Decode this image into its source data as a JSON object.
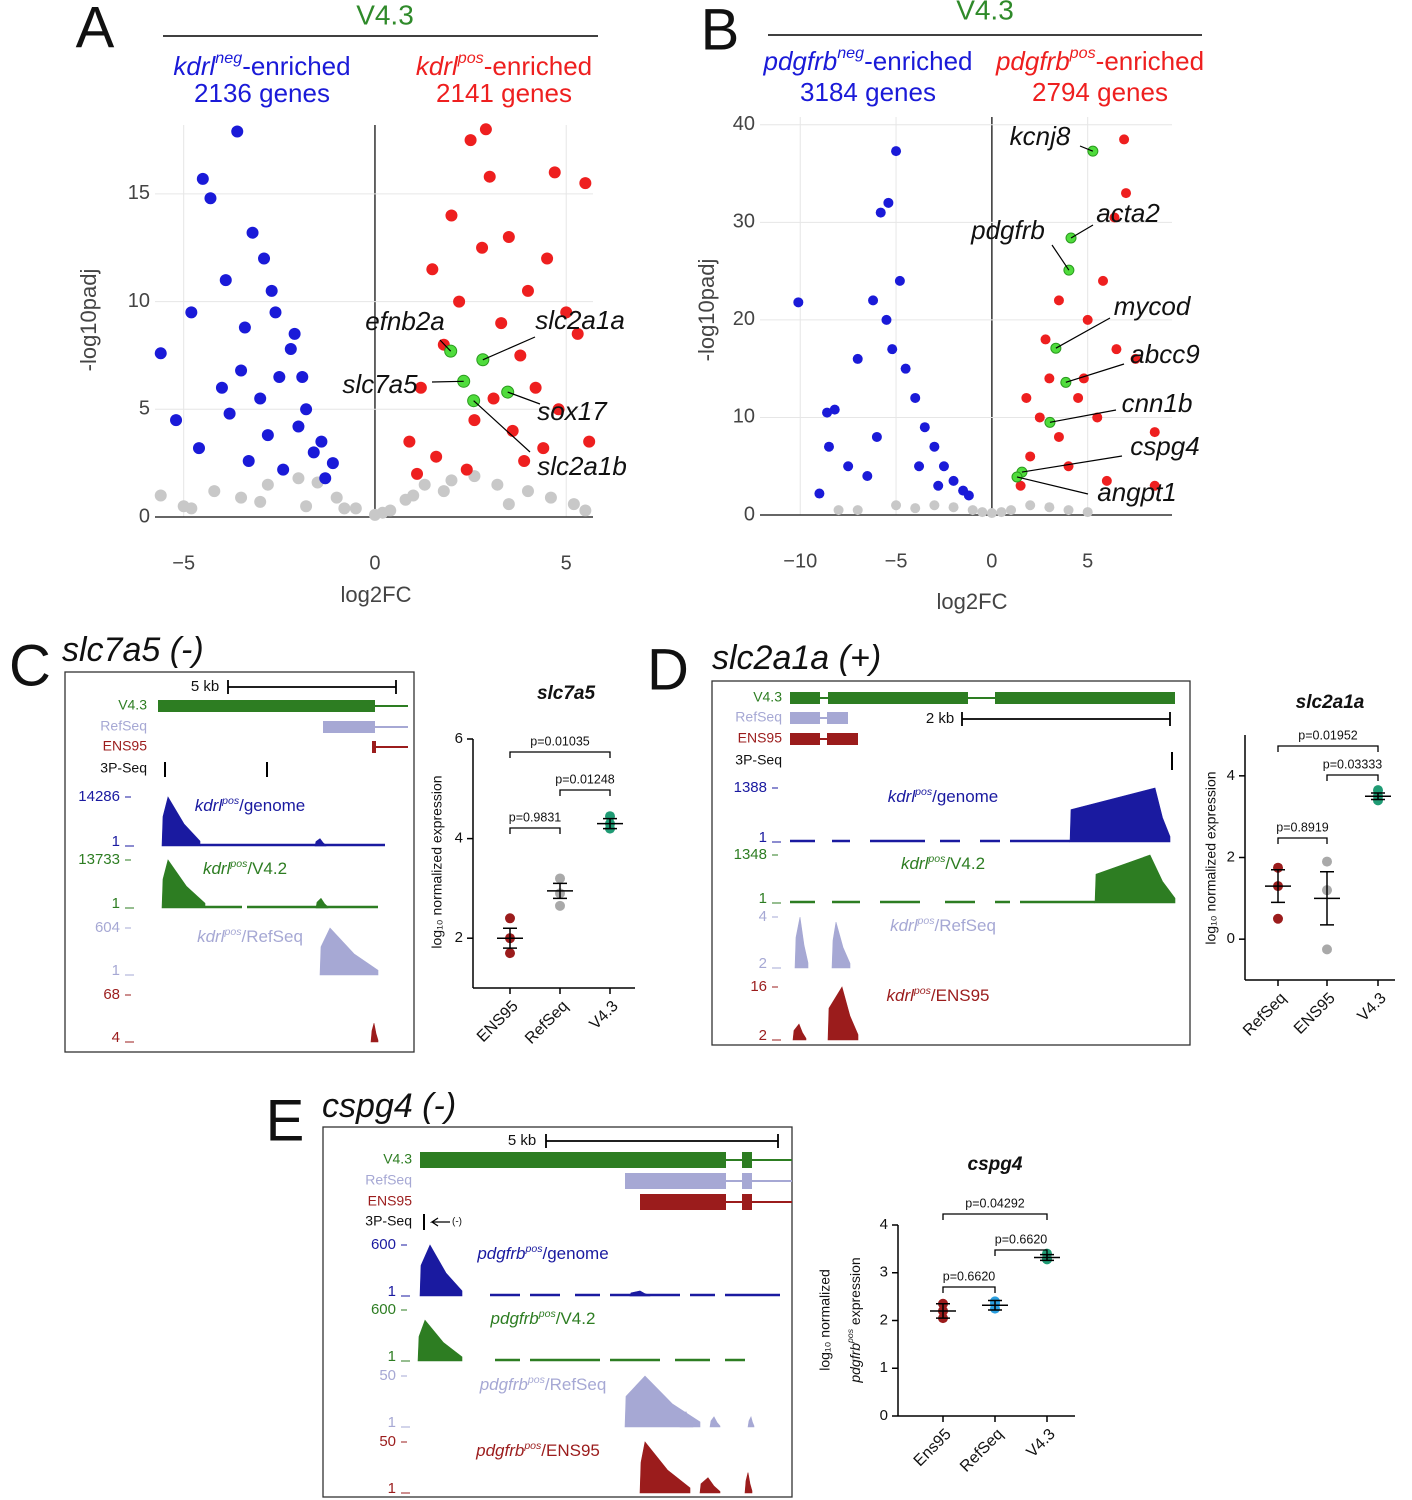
{
  "chart_data": [
    {
      "type": "scatter",
      "panel": "A",
      "title": "V4.3",
      "groups": [
        {
          "label": {
            "gene": "kdrl",
            "sup": "neg",
            "rest": "-enriched"
          },
          "count": "2136 genes",
          "color": "#1a1ad8"
        },
        {
          "label": {
            "gene": "kdrl",
            "sup": "pos",
            "rest": "-enriched"
          },
          "count": "2141 genes",
          "color": "#ee1f1f"
        }
      ],
      "xlabel": "log2FC",
      "ylabel": "-log10padj",
      "xlim": [
        -5.75,
        5.7
      ],
      "ylim": [
        0,
        18.2
      ],
      "xticks": [
        {
          "value": -5,
          "label": "−5"
        },
        0,
        5
      ],
      "yticks": [
        0,
        5,
        10,
        15
      ],
      "grid": true,
      "series": [
        {
          "color": "#c8c8c8",
          "x": [
            -5.6,
            -5.0,
            -4.2,
            -3.5,
            -2.8,
            -2.0,
            -1.5,
            -1.0,
            -0.5,
            0,
            0.4,
            0.8,
            1.3,
            2.0,
            2.6,
            3.2,
            4.0,
            4.6,
            5.2,
            -3.0,
            -1.8,
            -0.8,
            0.2,
            1.0,
            1.8,
            3.5,
            -4.8,
            5.5
          ],
          "values": [
            1.0,
            0.5,
            1.2,
            0.9,
            1.5,
            1.8,
            1.6,
            0.9,
            0.4,
            0.1,
            0.3,
            0.8,
            1.5,
            1.7,
            1.9,
            1.5,
            1.2,
            0.9,
            0.6,
            0.7,
            0.5,
            0.4,
            0.2,
            1.0,
            1.2,
            0.6,
            0.4,
            0.3
          ]
        },
        {
          "color": "#1a1ad8",
          "x": [
            -3.6,
            -4.5,
            -4.3,
            -3.2,
            -2.9,
            -5.6,
            -5.2,
            -4.8,
            -3.9,
            -3.4,
            -2.6,
            -2.2,
            -1.8,
            -1.4,
            -1.1,
            -2.5,
            -3.0,
            -3.5,
            -4.0,
            -2.0,
            -1.6,
            -2.8,
            -3.3,
            -4.6,
            -1.3,
            -2.4,
            -3.8,
            -2.1,
            -1.9,
            -2.7
          ],
          "values": [
            17.9,
            15.7,
            14.8,
            13.2,
            12.0,
            7.6,
            4.5,
            9.5,
            11.0,
            8.8,
            9.5,
            7.8,
            5.0,
            3.5,
            2.5,
            6.5,
            5.5,
            6.8,
            6.0,
            4.2,
            3.0,
            3.8,
            2.6,
            3.2,
            1.8,
            2.2,
            4.8,
            8.5,
            6.5,
            10.5
          ]
        },
        {
          "color": "#ee1f1f",
          "x": [
            1.5,
            2.0,
            2.5,
            3.0,
            3.5,
            4.0,
            4.5,
            5.0,
            5.5,
            1.2,
            0.9,
            1.8,
            2.2,
            2.8,
            3.3,
            3.8,
            4.2,
            4.8,
            5.3,
            2.6,
            3.1,
            3.6,
            4.4,
            1.6,
            2.4,
            3.9,
            5.6,
            1.1,
            2.9,
            4.7
          ],
          "values": [
            11.5,
            14.0,
            17.5,
            15.8,
            13.0,
            10.5,
            12.0,
            9.5,
            15.5,
            6.0,
            3.5,
            8.0,
            10.0,
            12.5,
            9.0,
            7.5,
            6.0,
            5.0,
            8.5,
            4.5,
            5.5,
            4.0,
            3.2,
            2.8,
            2.2,
            2.6,
            3.5,
            2.0,
            18.0,
            16.0
          ]
        },
        {
          "color": "#4fdc3c",
          "labels": [
            "efnb2a",
            "slc2a1a",
            "slc7a5",
            "sox17",
            "slc2a1b"
          ],
          "x": [
            1.98,
            2.82,
            2.32,
            3.47,
            2.58
          ],
          "values": [
            7.7,
            7.3,
            6.3,
            5.8,
            5.4
          ]
        }
      ]
    },
    {
      "type": "scatter",
      "panel": "B",
      "title": "V4.3",
      "groups": [
        {
          "label": {
            "gene": "pdgfrb",
            "sup": "neg",
            "rest": "-enriched"
          },
          "count": "3184 genes",
          "color": "#1a1ad8"
        },
        {
          "label": {
            "gene": "pdgfrb",
            "sup": "pos",
            "rest": "-enriched"
          },
          "count": "2794 genes",
          "color": "#ee1f1f"
        }
      ],
      "xlabel": "log2FC",
      "ylabel": "-log10padj",
      "xlim": [
        -12.1,
        9.4
      ],
      "ylim": [
        0,
        40.8
      ],
      "xticks": [
        {
          "value": -10,
          "label": "−10"
        },
        {
          "value": -5,
          "label": "−5"
        },
        0,
        5
      ],
      "yticks": [
        0,
        10,
        20,
        30,
        40
      ],
      "grid": true,
      "series": [
        {
          "color": "#c8c8c8",
          "x": [
            -8,
            -7,
            -5,
            -3,
            -2,
            -1,
            0,
            1,
            2,
            3,
            4,
            5,
            -4,
            -0.5,
            0.5
          ],
          "values": [
            0.5,
            0.5,
            1,
            1,
            0.8,
            0.5,
            0.2,
            0.5,
            1,
            0.8,
            0.5,
            0.3,
            0.7,
            0.3,
            0.3
          ]
        },
        {
          "color": "#1a1ad8",
          "x": [
            -10.1,
            -5,
            -5.4,
            -5.8,
            -6.2,
            -7,
            -8.6,
            -8.2,
            -9,
            -8.5,
            -7.5,
            -6.5,
            -5.5,
            -4.5,
            -4,
            -3.5,
            -3,
            -2.5,
            -2,
            -1.5,
            -1.2,
            -4.8,
            -5.2,
            -3.8,
            -6,
            -2.8
          ],
          "values": [
            21.8,
            37.3,
            32,
            31,
            22,
            16,
            10.5,
            10.8,
            2.2,
            7,
            5,
            4,
            20,
            15,
            12,
            9,
            7,
            5,
            3.5,
            2.5,
            2,
            24,
            17,
            5,
            8,
            3
          ]
        },
        {
          "color": "#ee1f1f",
          "x": [
            6.9,
            7.0,
            6.4,
            5.8,
            5,
            6.5,
            7.5,
            4.5,
            8.5,
            3.5,
            3,
            2.5,
            2,
            1.5,
            4,
            6,
            8.5,
            3.5,
            5.5,
            2.8,
            1.8,
            4.8
          ],
          "values": [
            38.5,
            33,
            30.5,
            24,
            20,
            17,
            16,
            12,
            8.5,
            22,
            14,
            10,
            6,
            3,
            5,
            3.5,
            3,
            8,
            10,
            18,
            12,
            14
          ]
        },
        {
          "color": "#4fdc3c",
          "labels": [
            "kcnj8",
            "acta2",
            "pdgfrb",
            "mycod",
            "abcc9",
            "cnn1b",
            "cspg4",
            "angpt1"
          ],
          "x": [
            5.27,
            4.13,
            4.02,
            3.34,
            3.86,
            3.03,
            1.57,
            1.31
          ],
          "values": [
            37.3,
            28.4,
            25.1,
            17.1,
            13.6,
            9.5,
            4.4,
            3.9
          ]
        }
      ]
    },
    {
      "type": "dot",
      "title": "slc7a5",
      "ylabel": [
        "log₁₀ normalized expression"
      ],
      "categories": [
        "ENS95",
        "RefSeq",
        "V4.3"
      ],
      "colors": [
        "#9b1c1c",
        "#a9a9a9",
        "#1f9b74"
      ],
      "points": [
        [
          2.4,
          2.0,
          1.7
        ],
        [
          3.2,
          2.9,
          2.65
        ],
        [
          4.45,
          4.3,
          4.2
        ]
      ],
      "means": [
        2.0,
        2.95,
        4.3
      ],
      "errors": [
        0.2,
        0.15,
        0.1
      ],
      "ylim": [
        1,
        6
      ],
      "yticks": [
        2,
        4,
        6
      ],
      "comparisons": [
        {
          "pair": [
            0,
            1
          ],
          "label": "p=0.9831"
        },
        {
          "pair": [
            1,
            2
          ],
          "label": "p=0.01248"
        },
        {
          "pair": [
            0,
            2
          ],
          "label": "p=0.01035"
        }
      ]
    },
    {
      "type": "dot",
      "title": "slc2a1a",
      "ylabel": [
        "log₁₀ normalized expression"
      ],
      "categories": [
        "RefSeq",
        "ENS95",
        "V4.3"
      ],
      "colors": [
        "#9b1c1c",
        "#a9a9a9",
        "#1f9b74"
      ],
      "points": [
        [
          1.75,
          1.3,
          0.5
        ],
        [
          1.9,
          1.2,
          -0.25
        ],
        [
          3.65,
          3.5,
          3.4
        ]
      ],
      "means": [
        1.3,
        1.0,
        3.5
      ],
      "errors": [
        0.4,
        0.65,
        0.08
      ],
      "ylim": [
        -1,
        5
      ],
      "yticks": [
        0,
        2,
        4
      ],
      "comparisons": [
        {
          "pair": [
            0,
            1
          ],
          "label": "p=0.8919"
        },
        {
          "pair": [
            1,
            2
          ],
          "label": "p=0.03333"
        },
        {
          "pair": [
            0,
            2
          ],
          "label": "p=0.01952"
        }
      ]
    },
    {
      "type": "dot",
      "title": "cspg4",
      "ylabel": [
        "log₁₀ normalized",
        {
          "gene": "pdgfrb",
          "sup": "pos",
          "rest": " expression"
        }
      ],
      "categories": [
        "Ens95",
        "RefSeq",
        "V4.3"
      ],
      "colors": [
        "#9b1c1c",
        "#2a9fe0",
        "#1f9b74"
      ],
      "points": [
        [
          2.35,
          2.2,
          2.05
        ],
        [
          2.4,
          2.35,
          2.25
        ],
        [
          3.4,
          3.3,
          3.28
        ]
      ],
      "means": [
        2.2,
        2.32,
        3.32
      ],
      "errors": [
        0.15,
        0.1,
        0.06
      ],
      "ylim": [
        0,
        4
      ],
      "yticks": [
        0,
        1,
        2,
        3,
        4
      ],
      "comparisons": [
        {
          "pair": [
            0,
            1
          ],
          "label": "p=0.6620"
        },
        {
          "pair": [
            1,
            2
          ],
          "label": "p=0.6620"
        },
        {
          "pair": [
            0,
            2
          ],
          "label": "p=0.04292"
        }
      ]
    }
  ],
  "browsers": [
    {
      "panel": "C",
      "gene": "slc7a5 (-)",
      "scale": "5 kb",
      "annotations": [
        "V4.3",
        "RefSeq",
        "ENS95",
        "3P-Seq"
      ],
      "tracks": [
        {
          "label": {
            "gene": "kdrl",
            "sup": "pos",
            "rest": "/genome"
          },
          "max": 14286,
          "min": 1,
          "color": "#1a1aa0"
        },
        {
          "label": {
            "gene": "kdrl",
            "sup": "pos",
            "rest": "/V4.2"
          },
          "max": 13733,
          "min": 1,
          "color": "#2d7d22"
        },
        {
          "label": {
            "gene": "kdrl",
            "sup": "pos",
            "rest": "/RefSeq"
          },
          "max": 604,
          "min": 1,
          "color": "#a6a8d4"
        },
        {
          "max": 68,
          "min": 4,
          "color": "#9b1c1c"
        }
      ]
    },
    {
      "panel": "D",
      "gene": "slc2a1a (+)",
      "scale": "2 kb",
      "annotations": [
        "V4.3",
        "RefSeq",
        "ENS95",
        "3P-Seq"
      ],
      "tracks": [
        {
          "label": {
            "gene": "kdrl",
            "sup": "pos",
            "rest": "/genome"
          },
          "max": 1388,
          "min": 1,
          "color": "#1a1aa0"
        },
        {
          "label": {
            "gene": "kdrl",
            "sup": "pos",
            "rest": "/V4.2"
          },
          "max": 1348,
          "min": 1,
          "color": "#2d7d22"
        },
        {
          "label": {
            "gene": "kdrl",
            "sup": "pos",
            "rest": "/RefSeq"
          },
          "max": 4,
          "min": 2,
          "color": "#a6a8d4"
        },
        {
          "label": {
            "gene": "kdrl",
            "sup": "pos",
            "rest": "/ENS95"
          },
          "max": 16,
          "min": 2,
          "color": "#9b1c1c"
        }
      ]
    },
    {
      "panel": "E",
      "gene": "cspg4 (-)",
      "scale": "5 kb",
      "annotations": [
        "V4.3",
        "RefSeq",
        "ENS95",
        "3P-Seq"
      ],
      "strand_mark": "(-)",
      "tracks": [
        {
          "label": {
            "gene": "pdgfrb",
            "sup": "pos",
            "rest": "/genome"
          },
          "max": 600,
          "min": 1,
          "color": "#1a1aa0"
        },
        {
          "label": {
            "gene": "pdgfrb",
            "sup": "pos",
            "rest": "/V4.2"
          },
          "max": 600,
          "min": 1,
          "color": "#2d7d22"
        },
        {
          "label": {
            "gene": "pdgfrb",
            "sup": "pos",
            "rest": "/RefSeq"
          },
          "max": 50,
          "min": 1,
          "color": "#a6a8d4"
        },
        {
          "label": {
            "gene": "pdgfrb",
            "sup": "pos",
            "rest": "/ENS95"
          },
          "max": 50,
          "min": 1,
          "color": "#9b1c1c"
        }
      ]
    }
  ]
}
